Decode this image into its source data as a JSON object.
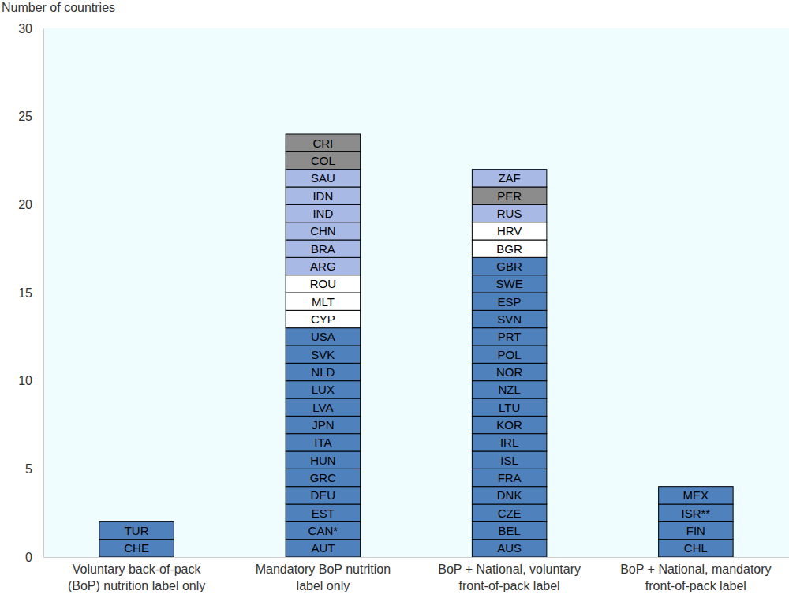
{
  "chart_data": {
    "type": "bar",
    "stacked": true,
    "grid": false,
    "y_label": "Number of countries",
    "categories": [
      "Voluntary back-of-pack\n(BoP) nutrition label only",
      "Mandatory BoP nutrition\nlabel only",
      "BoP + National, voluntary\nfront-of-pack label",
      "BoP + National, mandatory\nfront-of-pack label"
    ],
    "ylim": [
      0,
      30
    ],
    "yticks": [
      0,
      5,
      10,
      15,
      20,
      25,
      30
    ],
    "stacks": [
      {
        "labels": [
          "CHE",
          "TUR"
        ],
        "values": [
          1,
          1
        ],
        "colors": [
          "#4f81bd",
          "#4f81bd"
        ]
      },
      {
        "labels": [
          "AUT",
          "CAN*",
          "EST",
          "DEU",
          "GRC",
          "HUN",
          "ITA",
          "JPN",
          "LVA",
          "LUX",
          "NLD",
          "SVK",
          "USA",
          "CYP",
          "MLT",
          "ROU",
          "ARG",
          "BRA",
          "CHN",
          "IND",
          "IDN",
          "SAU",
          "COL",
          "CRI"
        ],
        "values": [
          1,
          1,
          1,
          1,
          1,
          1,
          1,
          1,
          1,
          1,
          1,
          1,
          1,
          1,
          1,
          1,
          1,
          1,
          1,
          1,
          1,
          1,
          1,
          1
        ],
        "colors": [
          "#4f81bd",
          "#4f81bd",
          "#4f81bd",
          "#4f81bd",
          "#4f81bd",
          "#4f81bd",
          "#4f81bd",
          "#4f81bd",
          "#4f81bd",
          "#4f81bd",
          "#4f81bd",
          "#4f81bd",
          "#4f81bd",
          "#ffffff",
          "#ffffff",
          "#ffffff",
          "#a8b9e6",
          "#a8b9e6",
          "#a8b9e6",
          "#a8b9e6",
          "#a8b9e6",
          "#a8b9e6",
          "#8c8c8c",
          "#8c8c8c"
        ]
      },
      {
        "labels": [
          "AUS",
          "BEL",
          "CZE",
          "DNK",
          "FRA",
          "ISL",
          "IRL",
          "KOR",
          "LTU",
          "NZL",
          "NOR",
          "POL",
          "PRT",
          "SVN",
          "ESP",
          "SWE",
          "GBR",
          "BGR",
          "HRV",
          "RUS",
          "PER",
          "ZAF"
        ],
        "values": [
          1,
          1,
          1,
          1,
          1,
          1,
          1,
          1,
          1,
          1,
          1,
          1,
          1,
          1,
          1,
          1,
          1,
          1,
          1,
          1,
          1,
          1
        ],
        "colors": [
          "#4f81bd",
          "#4f81bd",
          "#4f81bd",
          "#4f81bd",
          "#4f81bd",
          "#4f81bd",
          "#4f81bd",
          "#4f81bd",
          "#4f81bd",
          "#4f81bd",
          "#4f81bd",
          "#4f81bd",
          "#4f81bd",
          "#4f81bd",
          "#4f81bd",
          "#4f81bd",
          "#4f81bd",
          "#ffffff",
          "#ffffff",
          "#a8b9e6",
          "#8c8c8c",
          "#a8b9e6"
        ]
      },
      {
        "labels": [
          "CHL",
          "FIN",
          "ISR**",
          "MEX"
        ],
        "values": [
          1,
          1,
          1,
          1
        ],
        "colors": [
          "#4f81bd",
          "#4f81bd",
          "#4f81bd",
          "#4f81bd"
        ]
      }
    ]
  }
}
